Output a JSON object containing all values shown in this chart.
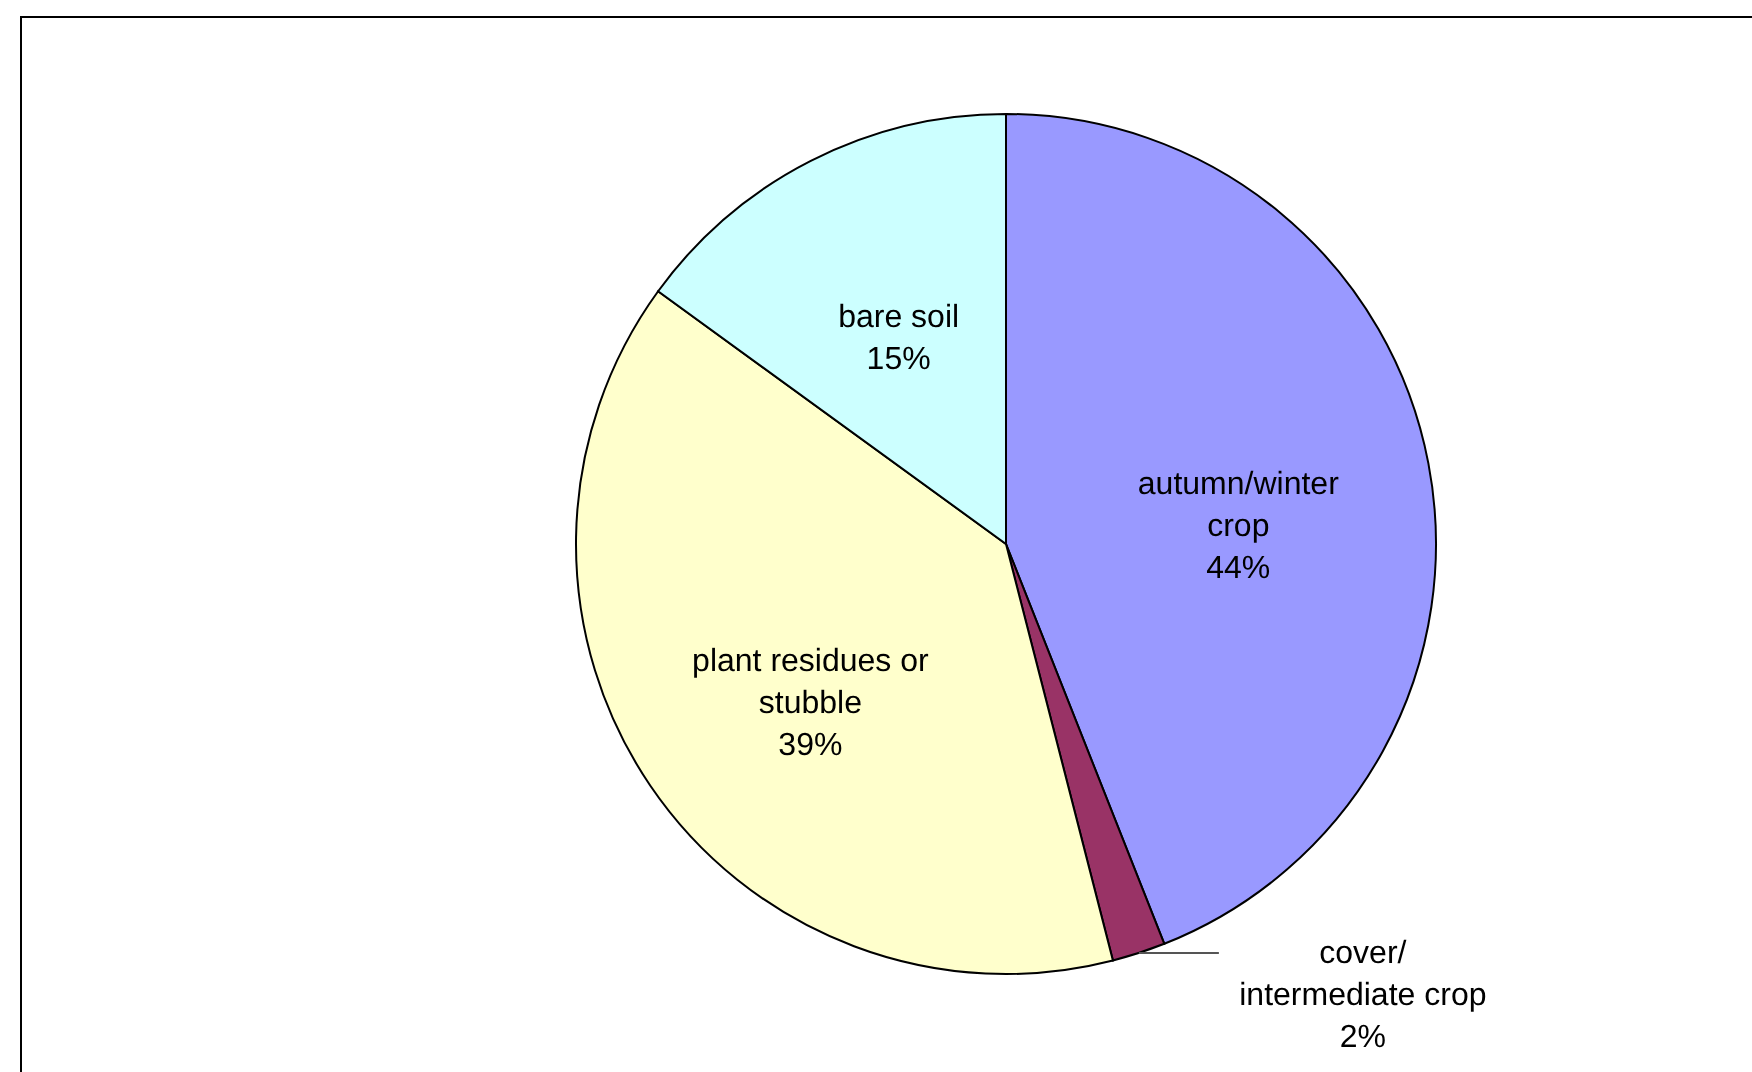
{
  "chart_data": {
    "type": "pie",
    "categories": [
      "autumn/winter crop",
      "cover/ intermediate crop",
      "plant residues or stubble",
      "bare soil"
    ],
    "values": [
      44,
      2,
      39,
      15
    ],
    "colors": [
      "#9999ff",
      "#993366",
      "#ffffcc",
      "#ccffff"
    ],
    "value_labels": [
      "44%",
      "2%",
      "39%",
      "15%"
    ]
  }
}
